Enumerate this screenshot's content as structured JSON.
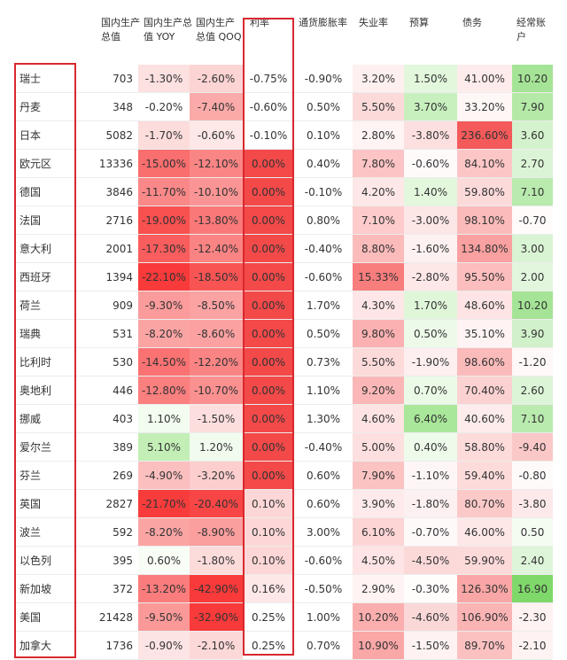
{
  "headers": [
    "国内生产总值",
    "国内生产总值 YOY",
    "国内生产总值 QOQ",
    "利率",
    "通货膨胀率",
    "失业率",
    "预算",
    "债务",
    "经常账户"
  ],
  "rows": [
    {
      "country": "瑞士",
      "gdp": "703",
      "yoy": "-1.30%",
      "qoq": "-2.60%",
      "rate": "-0.75%",
      "inflation": "-0.90%",
      "unemployment": "3.20%",
      "budget": "1.50%",
      "debt": "41.00%",
      "current_account": "10.20"
    },
    {
      "country": "丹麦",
      "gdp": "348",
      "yoy": "-0.20%",
      "qoq": "-7.40%",
      "rate": "-0.60%",
      "inflation": "0.50%",
      "unemployment": "5.50%",
      "budget": "3.70%",
      "debt": "33.20%",
      "current_account": "7.90"
    },
    {
      "country": "日本",
      "gdp": "5082",
      "yoy": "-1.70%",
      "qoq": "-0.60%",
      "rate": "-0.10%",
      "inflation": "0.10%",
      "unemployment": "2.80%",
      "budget": "-3.80%",
      "debt": "236.60%",
      "current_account": "3.60"
    },
    {
      "country": "欧元区",
      "gdp": "13336",
      "yoy": "-15.00%",
      "qoq": "-12.10%",
      "rate": "0.00%",
      "inflation": "0.40%",
      "unemployment": "7.80%",
      "budget": "-0.60%",
      "debt": "84.10%",
      "current_account": "2.70"
    },
    {
      "country": "德国",
      "gdp": "3846",
      "yoy": "-11.70%",
      "qoq": "-10.10%",
      "rate": "0.00%",
      "inflation": "-0.10%",
      "unemployment": "4.20%",
      "budget": "1.40%",
      "debt": "59.80%",
      "current_account": "7.10"
    },
    {
      "country": "法国",
      "gdp": "2716",
      "yoy": "-19.00%",
      "qoq": "-13.80%",
      "rate": "0.00%",
      "inflation": "0.80%",
      "unemployment": "7.10%",
      "budget": "-3.00%",
      "debt": "98.10%",
      "current_account": "-0.70"
    },
    {
      "country": "意大利",
      "gdp": "2001",
      "yoy": "-17.30%",
      "qoq": "-12.40%",
      "rate": "0.00%",
      "inflation": "-0.40%",
      "unemployment": "8.80%",
      "budget": "-1.60%",
      "debt": "134.80%",
      "current_account": "3.00"
    },
    {
      "country": "西班牙",
      "gdp": "1394",
      "yoy": "-22.10%",
      "qoq": "-18.50%",
      "rate": "0.00%",
      "inflation": "-0.60%",
      "unemployment": "15.33%",
      "budget": "-2.80%",
      "debt": "95.50%",
      "current_account": "2.00"
    },
    {
      "country": "荷兰",
      "gdp": "909",
      "yoy": "-9.30%",
      "qoq": "-8.50%",
      "rate": "0.00%",
      "inflation": "1.70%",
      "unemployment": "4.30%",
      "budget": "1.70%",
      "debt": "48.60%",
      "current_account": "10.20"
    },
    {
      "country": "瑞典",
      "gdp": "531",
      "yoy": "-8.20%",
      "qoq": "-8.60%",
      "rate": "0.00%",
      "inflation": "0.50%",
      "unemployment": "9.80%",
      "budget": "0.50%",
      "debt": "35.10%",
      "current_account": "3.90"
    },
    {
      "country": "比利时",
      "gdp": "530",
      "yoy": "-14.50%",
      "qoq": "-12.20%",
      "rate": "0.00%",
      "inflation": "0.73%",
      "unemployment": "5.50%",
      "budget": "-1.90%",
      "debt": "98.60%",
      "current_account": "-1.20"
    },
    {
      "country": "奥地利",
      "gdp": "446",
      "yoy": "-12.80%",
      "qoq": "-10.70%",
      "rate": "0.00%",
      "inflation": "1.10%",
      "unemployment": "9.20%",
      "budget": "0.70%",
      "debt": "70.40%",
      "current_account": "2.60"
    },
    {
      "country": "挪威",
      "gdp": "403",
      "yoy": "1.10%",
      "qoq": "-1.50%",
      "rate": "0.00%",
      "inflation": "1.30%",
      "unemployment": "4.60%",
      "budget": "6.40%",
      "debt": "40.60%",
      "current_account": "7.10"
    },
    {
      "country": "爱尔兰",
      "gdp": "389",
      "yoy": "5.10%",
      "qoq": "1.20%",
      "rate": "0.00%",
      "inflation": "-0.40%",
      "unemployment": "5.00%",
      "budget": "0.40%",
      "debt": "58.80%",
      "current_account": "-9.40"
    },
    {
      "country": "芬兰",
      "gdp": "269",
      "yoy": "-4.90%",
      "qoq": "-3.20%",
      "rate": "0.00%",
      "inflation": "0.60%",
      "unemployment": "7.90%",
      "budget": "-1.10%",
      "debt": "59.40%",
      "current_account": "-0.80"
    },
    {
      "country": "英国",
      "gdp": "2827",
      "yoy": "-21.70%",
      "qoq": "-20.40%",
      "rate": "0.10%",
      "inflation": "0.60%",
      "unemployment": "3.90%",
      "budget": "-1.80%",
      "debt": "80.70%",
      "current_account": "-3.80"
    },
    {
      "country": "波兰",
      "gdp": "592",
      "yoy": "-8.20%",
      "qoq": "-8.90%",
      "rate": "0.10%",
      "inflation": "3.00%",
      "unemployment": "6.10%",
      "budget": "-0.70%",
      "debt": "46.00%",
      "current_account": "0.50"
    },
    {
      "country": "以色列",
      "gdp": "395",
      "yoy": "0.60%",
      "qoq": "-1.80%",
      "rate": "0.10%",
      "inflation": "-0.60%",
      "unemployment": "4.50%",
      "budget": "-4.50%",
      "debt": "59.90%",
      "current_account": "2.40"
    },
    {
      "country": "新加坡",
      "gdp": "372",
      "yoy": "-13.20%",
      "qoq": "-42.90%",
      "rate": "0.16%",
      "inflation": "-0.50%",
      "unemployment": "2.90%",
      "budget": "-0.30%",
      "debt": "126.30%",
      "current_account": "16.90"
    },
    {
      "country": "美国",
      "gdp": "21428",
      "yoy": "-9.50%",
      "qoq": "-32.90%",
      "rate": "0.25%",
      "inflation": "1.00%",
      "unemployment": "10.20%",
      "budget": "-4.60%",
      "debt": "106.90%",
      "current_account": "-2.30"
    },
    {
      "country": "加拿大",
      "gdp": "1736",
      "yoy": "-0.90%",
      "qoq": "-2.10%",
      "rate": "0.25%",
      "inflation": "0.70%",
      "unemployment": "10.90%",
      "budget": "-1.50%",
      "debt": "89.70%",
      "current_account": "-2.10"
    }
  ],
  "colors": {
    "text": "#333333",
    "negative_strong": "#f83a3a",
    "negative_light": "#fce4e4",
    "positive_strong": "#8ee07a",
    "positive_light": "#e7f9e2",
    "highlight_box": "#d9282f"
  }
}
